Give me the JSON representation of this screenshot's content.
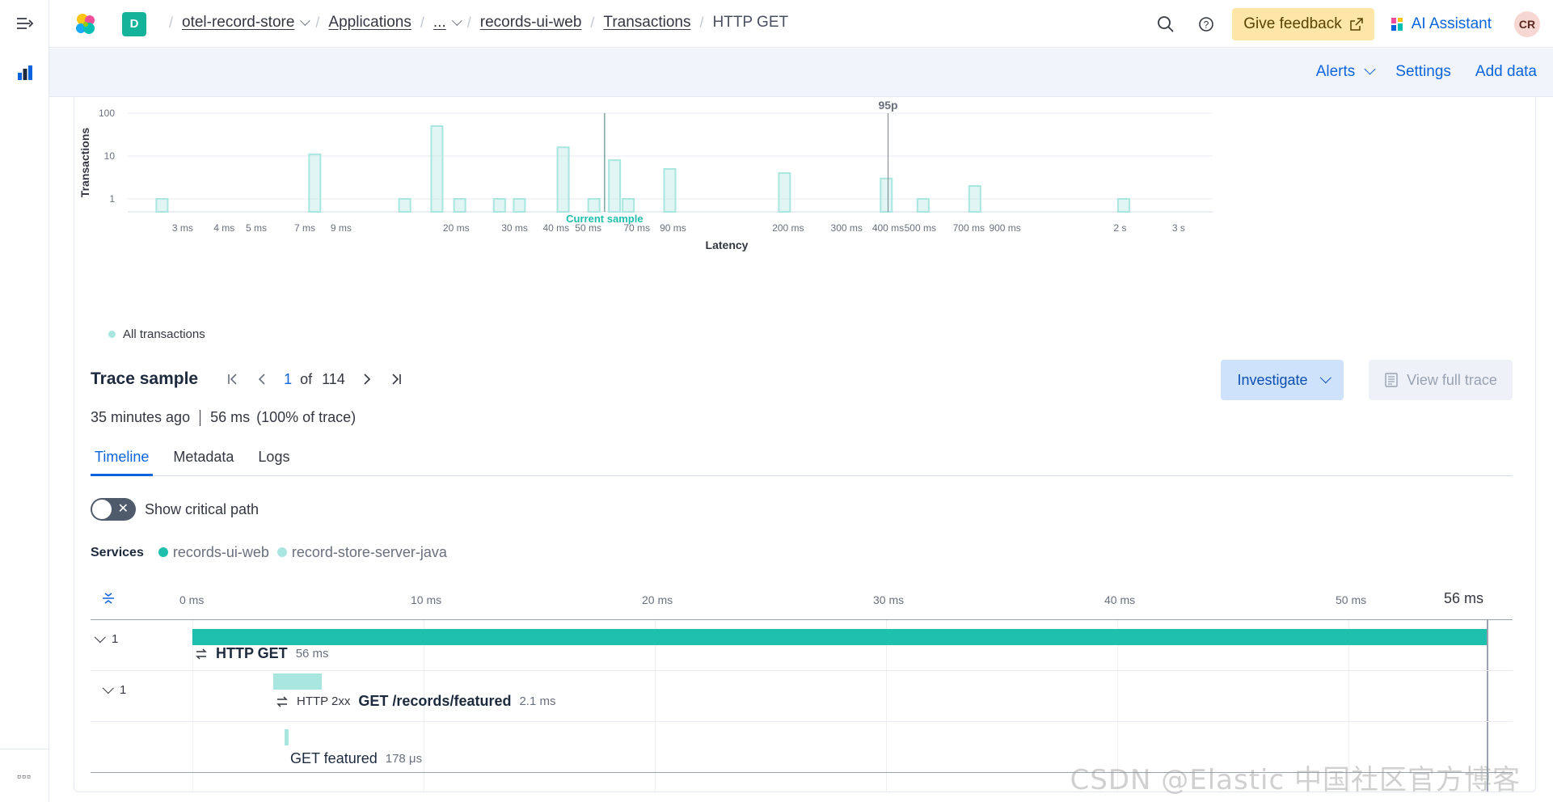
{
  "header": {
    "space_initial": "D",
    "breadcrumbs": [
      "otel-record-store",
      "Applications",
      "...",
      "records-ui-web",
      "Transactions",
      "HTTP GET"
    ],
    "feedback_label": "Give feedback",
    "ai_label": "AI Assistant",
    "avatar_initials": "CR"
  },
  "subbar": {
    "alerts_label": "Alerts",
    "settings_label": "Settings",
    "add_data_label": "Add data"
  },
  "chart_data": {
    "type": "bar",
    "title": "",
    "xlabel": "Latency",
    "ylabel": "Transactions",
    "y_scale": "log",
    "y_ticks": [
      "100",
      "10",
      "1"
    ],
    "x_scale": "log",
    "x_ticks": [
      "3 ms",
      "4 ms",
      "5 ms",
      "7 ms",
      "9 ms",
      "20 ms",
      "30 ms",
      "40 ms",
      "50 ms",
      "70 ms",
      "90 ms",
      "200 ms",
      "300 ms",
      "400 ms",
      "500 ms",
      "700 ms",
      "900 ms",
      "2 s",
      "3 s"
    ],
    "series": [
      {
        "name": "All transactions",
        "points": [
          {
            "x_ms": 2.6,
            "y": 1
          },
          {
            "x_ms": 7.5,
            "y": 11
          },
          {
            "x_ms": 14,
            "y": 1
          },
          {
            "x_ms": 17.5,
            "y": 50
          },
          {
            "x_ms": 20.5,
            "y": 1
          },
          {
            "x_ms": 27,
            "y": 1
          },
          {
            "x_ms": 31,
            "y": 1
          },
          {
            "x_ms": 42,
            "y": 16
          },
          {
            "x_ms": 52,
            "y": 1
          },
          {
            "x_ms": 60,
            "y": 8
          },
          {
            "x_ms": 66,
            "y": 1
          },
          {
            "x_ms": 88,
            "y": 5
          },
          {
            "x_ms": 195,
            "y": 4
          },
          {
            "x_ms": 395,
            "y": 3
          },
          {
            "x_ms": 510,
            "y": 1
          },
          {
            "x_ms": 730,
            "y": 2
          },
          {
            "x_ms": 2050,
            "y": 1
          }
        ]
      }
    ],
    "markers": [
      {
        "label": "Current sample",
        "x_ms": 56
      },
      {
        "label": "95p",
        "x_ms": 400
      }
    ],
    "legend": "bottom-left",
    "grid": true
  },
  "trace": {
    "title": "Trace sample",
    "current": "1",
    "of_label": "of",
    "total": "114",
    "investigate_label": "Investigate",
    "view_full_label": "View full trace",
    "age": "35 minutes ago",
    "duration": "56 ms",
    "pct": "(100% of trace)"
  },
  "tabs": [
    "Timeline",
    "Metadata",
    "Logs"
  ],
  "critical_path_label": "Show critical path",
  "services": {
    "label": "Services",
    "items": [
      {
        "name": "records-ui-web",
        "color": "#1fbfae"
      },
      {
        "name": "record-store-server-java",
        "color": "#a8e6df"
      }
    ]
  },
  "waterfall": {
    "axis_labels": [
      "0 ms",
      "10 ms",
      "20 ms",
      "30 ms",
      "40 ms",
      "50 ms"
    ],
    "axis_end": "56 ms",
    "total_ms": 56,
    "spans": [
      {
        "count": "1",
        "prefix": "",
        "name": "HTTP GET",
        "duration": "56 ms",
        "start_ms": 0,
        "dur_ms": 56,
        "color": "#1fbfae"
      },
      {
        "count": "1",
        "prefix": "HTTP 2xx",
        "name": "GET /records/featured",
        "duration": "2.1 ms",
        "start_ms": 3.5,
        "dur_ms": 2.1,
        "color": "#a8e6df"
      },
      {
        "count": "",
        "prefix": "",
        "name": "GET featured",
        "duration": "178 μs",
        "start_ms": 4.0,
        "dur_ms": 0.178,
        "color": "#a8e6df"
      }
    ]
  },
  "watermark": "CSDN @Elastic 中国社区官方博客"
}
